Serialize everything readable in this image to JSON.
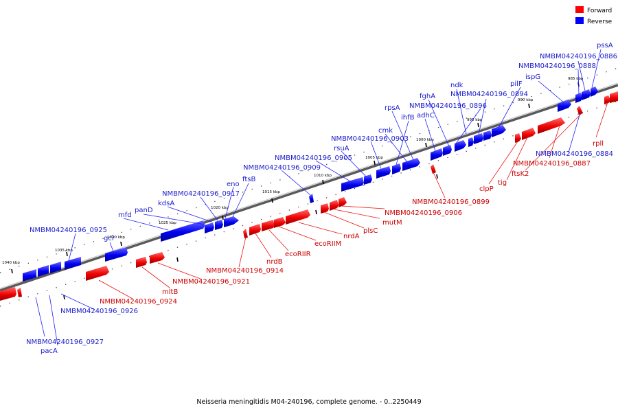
{
  "legend": {
    "forward": {
      "label": "Forward",
      "color": "#ff0000"
    },
    "reverse": {
      "label": "Reverse",
      "color": "#0000ff"
    }
  },
  "caption": "Neisseria meningitidis M04-240196, complete genome. - 0..2250449",
  "ticks": [
    {
      "label": "1040 kbp"
    },
    {
      "label": "1035 kbp"
    },
    {
      "label": "1030 kbp"
    },
    {
      "label": "1025 kbp"
    },
    {
      "label": "1020 kbp"
    },
    {
      "label": "1015 kbp"
    },
    {
      "label": "1010 kbp"
    },
    {
      "label": "1005 kbp"
    },
    {
      "label": "1000 kbp"
    },
    {
      "label": "995 kbp"
    },
    {
      "label": "990 kbp"
    },
    {
      "label": "985 kbp"
    }
  ],
  "reverse_labels": [
    "pssA",
    "NMBM04240196_0886",
    "NMBM04240196_0888",
    "ispG",
    "pilF",
    "ndk",
    "NMBM04240196_0894",
    "fghA",
    "NMBM04240196_0896",
    "adhC",
    "rpsA",
    "ihfB",
    "cmk",
    "NMBM04240196_0903",
    "rsuA",
    "NMBM04240196_0905",
    "NMBM04240196_0909",
    "ftsB",
    "eno",
    "NMBM04240196_0917",
    "kdsA",
    "panD",
    "mfd",
    "gcr",
    "NMBM04240196_0925",
    "NMBM04240196_0884",
    "NMBM04240196_0926",
    "NMBM04240196_0927",
    "pacA"
  ],
  "forward_labels": [
    "rpll",
    "NMBM04240196_0887",
    "ftsK2",
    "tig",
    "clpP",
    "NMBM04240196_0899",
    "NMBM04240196_0906",
    "mutM",
    "plsC",
    "nrdA",
    "ecoRIIM",
    "ecoRIIR",
    "nrdB",
    "NMBM04240196_0914",
    "NMBM04240196_0921",
    "mltB",
    "NMBM04240196_0924"
  ]
}
